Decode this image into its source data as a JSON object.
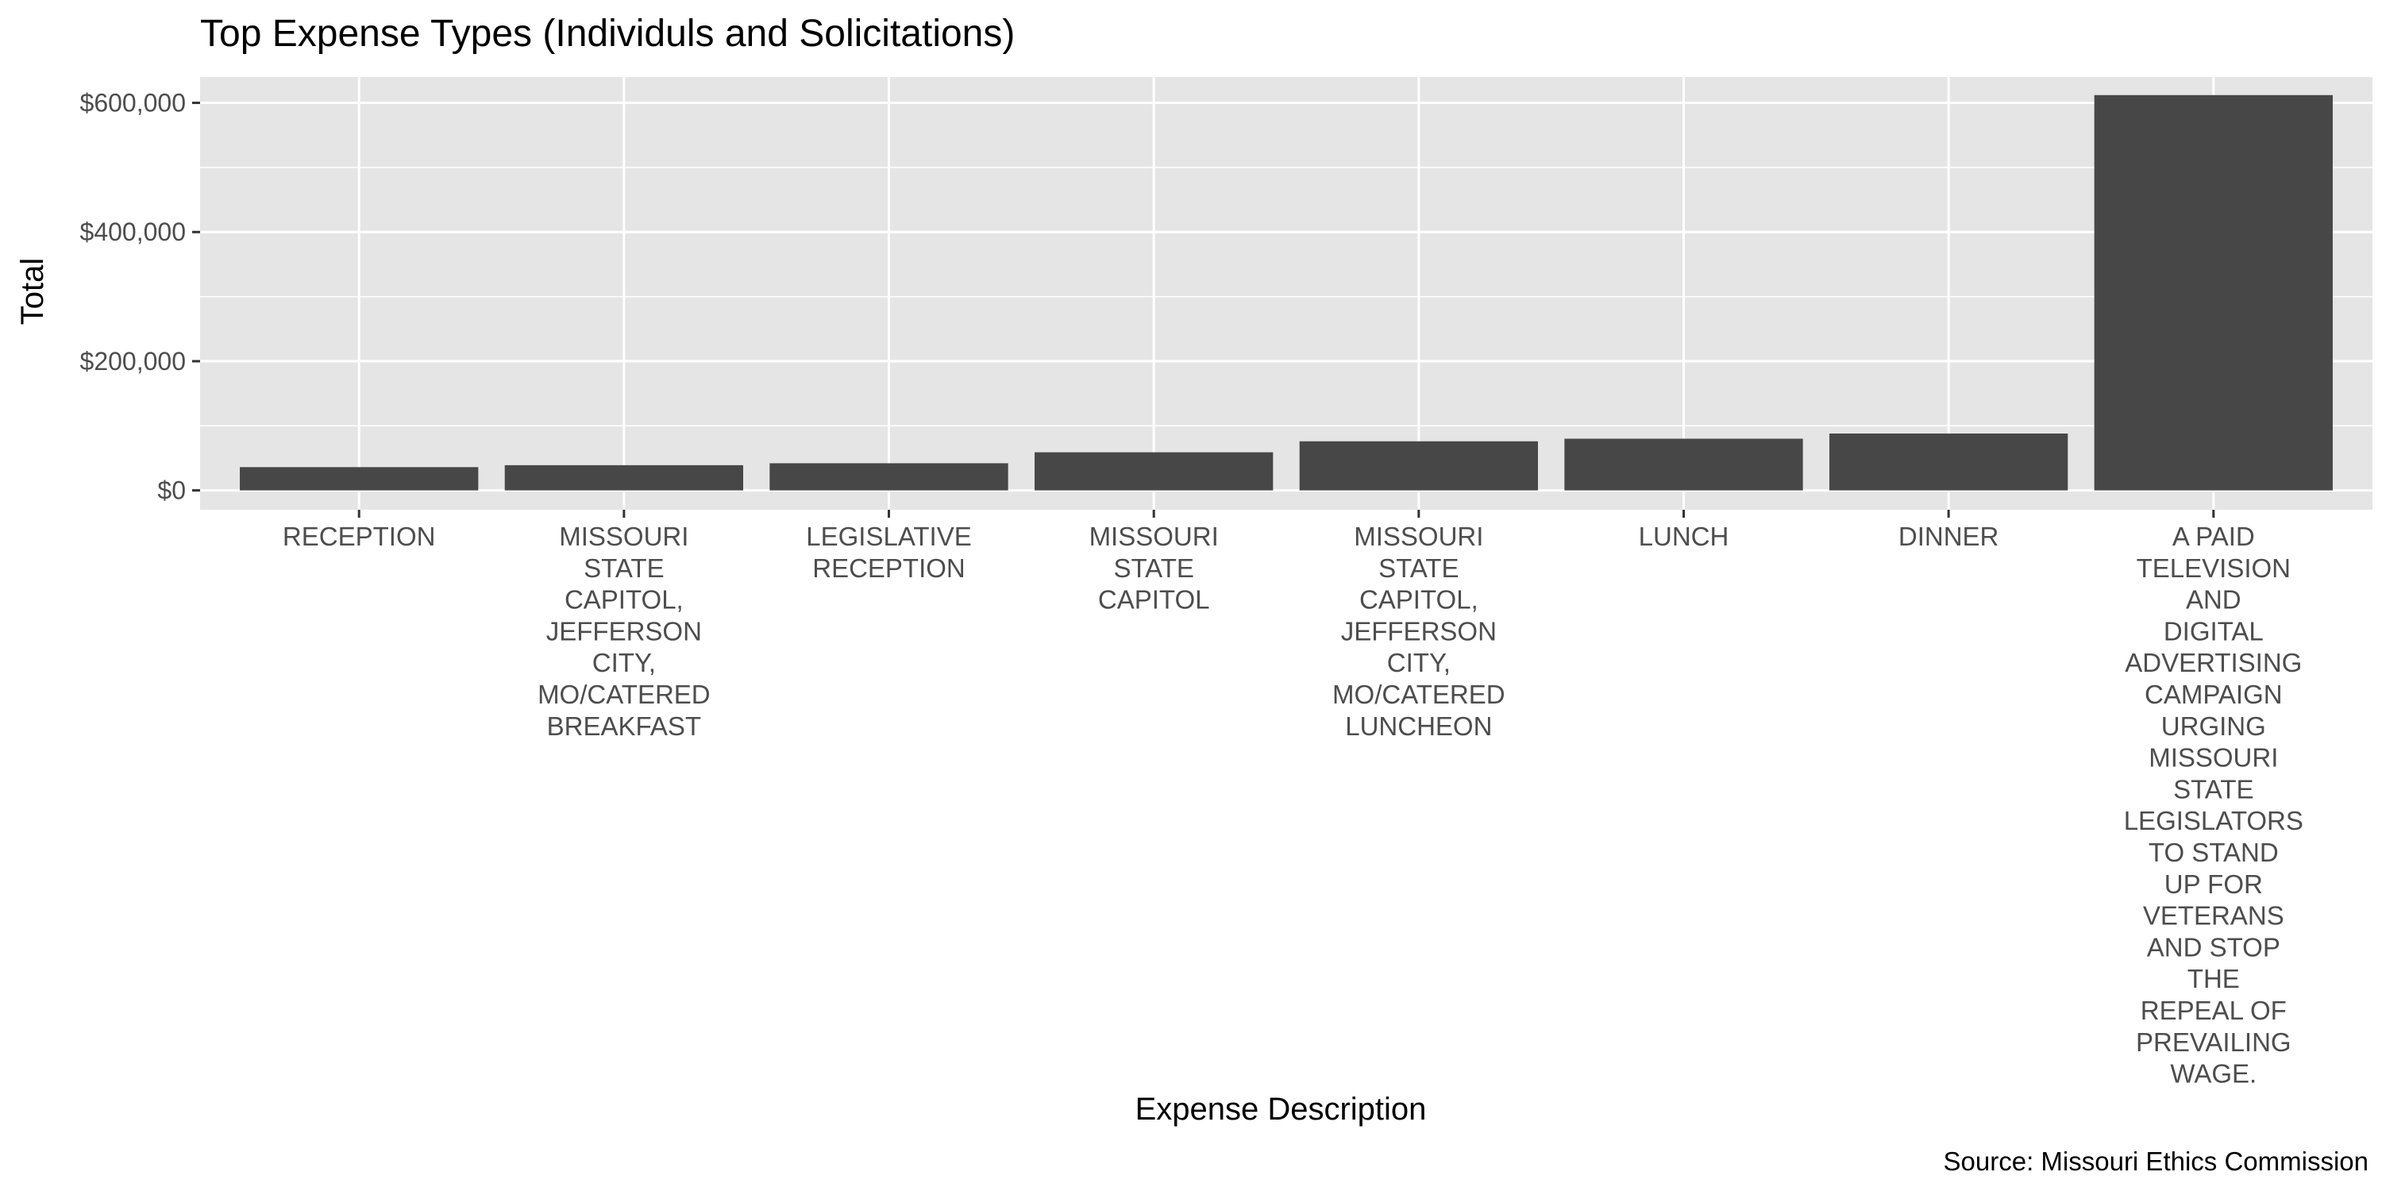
{
  "chart_data": {
    "type": "bar",
    "title": "Top Expense Types (Individuls and Solicitations)",
    "xlabel": "Expense Description",
    "ylabel": "Total",
    "caption": "Source: Missouri Ethics Commission",
    "categories": [
      [
        "RECEPTION"
      ],
      [
        "MISSOURI",
        "STATE",
        "CAPITOL,",
        "JEFFERSON",
        "CITY,",
        "MO/CATERED",
        "BREAKFAST"
      ],
      [
        "LEGISLATIVE",
        "RECEPTION"
      ],
      [
        "MISSOURI",
        "STATE",
        "CAPITOL"
      ],
      [
        "MISSOURI",
        "STATE",
        "CAPITOL,",
        "JEFFERSON",
        "CITY,",
        "MO/CATERED",
        "LUNCHEON"
      ],
      [
        "LUNCH"
      ],
      [
        "DINNER"
      ],
      [
        "A PAID",
        "TELEVISION",
        "AND",
        "DIGITAL",
        "ADVERTISING",
        "CAMPAIGN",
        "URGING",
        "MISSOURI",
        "STATE",
        "LEGISLATORS",
        "TO STAND",
        "UP FOR",
        "VETERANS",
        "AND STOP",
        "THE",
        "REPEAL OF",
        "PREVAILING",
        "WAGE."
      ]
    ],
    "values": [
      36000,
      39000,
      42000,
      59000,
      76000,
      80000,
      88000,
      612000
    ],
    "ylim": [
      -30000,
      640000
    ],
    "y_ticks": [
      0,
      200000,
      400000,
      600000
    ],
    "y_tick_labels": [
      "$0",
      "$200,000",
      "$400,000",
      "$600,000"
    ],
    "grid": true,
    "colors": {
      "panel_background": "#E5E5E5",
      "grid_major": "#FFFFFF",
      "bar_fill": "#474747",
      "axis_text": "#4D4D4D",
      "title_text": "#000000"
    }
  }
}
